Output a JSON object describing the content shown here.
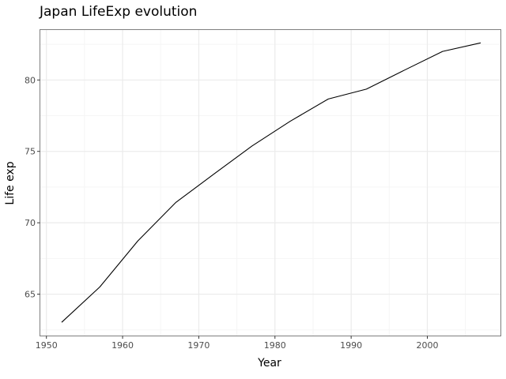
{
  "chart_data": {
    "type": "line",
    "title": "Japan LifeExp evolution",
    "xlabel": "Year",
    "ylabel": "Life exp",
    "xlim": [
      1949.2,
      2009.6
    ],
    "ylim": [
      62.1,
      83.5
    ],
    "x_ticks": [
      1950,
      1960,
      1970,
      1980,
      1990,
      2000
    ],
    "x_tick_labels": [
      "1950",
      "1960",
      "1970",
      "1980",
      "1990",
      "2000"
    ],
    "y_ticks": [
      65,
      70,
      75,
      80
    ],
    "y_tick_labels": [
      "65",
      "70",
      "75",
      "80"
    ],
    "grid": true,
    "legend": "none",
    "series": [
      {
        "x": [
          1952,
          1957,
          1962,
          1967,
          1972,
          1977,
          1982,
          1987,
          1992,
          1997,
          2002,
          2007
        ],
        "y": [
          63.03,
          65.5,
          68.73,
          71.43,
          73.42,
          75.38,
          77.11,
          78.67,
          79.36,
          80.69,
          82.0,
          82.6
        ]
      }
    ],
    "colors": {
      "line": "#000000",
      "grid_major": "#ebebeb",
      "grid_minor": "#f5f5f5",
      "frame": "#7f7f7f"
    }
  }
}
